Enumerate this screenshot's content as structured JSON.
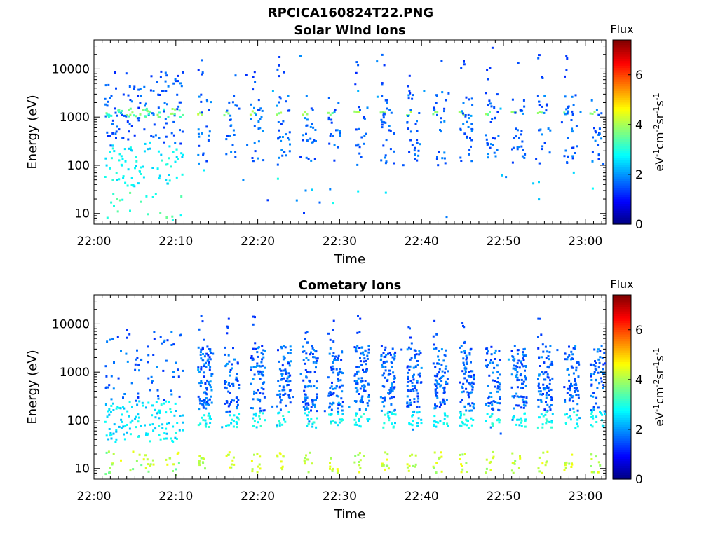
{
  "figure": {
    "title": "RPCICA160824T22.PNG"
  },
  "colorbar": {
    "label": "Flux",
    "unit_main": "eV",
    "unit_parts": [
      {
        "t": "eV",
        "sup": false
      },
      {
        "t": "-1",
        "sup": true
      },
      {
        "t": "cm",
        "sup": false
      },
      {
        "t": "-2",
        "sup": true
      },
      {
        "t": "sr",
        "sup": false
      },
      {
        "t": "-1",
        "sup": true
      },
      {
        "t": "s",
        "sup": false
      },
      {
        "t": "-1",
        "sup": true
      }
    ],
    "range": [
      0,
      7.4
    ],
    "ticks": [
      "0",
      "2",
      "4",
      "6"
    ],
    "colormap": "jet",
    "colors": [
      "#00007f",
      "#0000ff",
      "#007fff",
      "#00ffff",
      "#7fff7f",
      "#ffff00",
      "#ff7f00",
      "#ff0000",
      "#7f0000"
    ]
  },
  "chart_data": [
    {
      "type": "heatmap",
      "title": "Solar Wind Ions",
      "xlabel": "Time",
      "ylabel": "Energy (eV)",
      "yscale": "log",
      "ylim": [
        6,
        40000
      ],
      "xlim_minutes": [
        0,
        62.5
      ],
      "xtick_labels": [
        "22:00",
        "22:10",
        "22:20",
        "22:30",
        "22:40",
        "22:50",
        "23:00"
      ],
      "ytick_labels": [
        "10",
        "100",
        "1000",
        "10000"
      ],
      "bursts_start_min": [
        12.6,
        15.8,
        19.0,
        22.2,
        25.4,
        28.5,
        31.7,
        34.9,
        38.1,
        41.3,
        44.5,
        47.7,
        50.9,
        54.1,
        57.3,
        60.5
      ],
      "band_energy_eV": 1200,
      "band_flux": 3.4,
      "peak_flux": 4.2
    },
    {
      "type": "heatmap",
      "title": "Cometary Ions",
      "xlabel": "Time",
      "ylabel": "Energy (eV)",
      "yscale": "log",
      "ylim": [
        6,
        40000
      ],
      "xlim_minutes": [
        0,
        62.5
      ],
      "xtick_labels": [
        "22:00",
        "22:10",
        "22:20",
        "22:30",
        "22:40",
        "22:50",
        "23:00"
      ],
      "ytick_labels": [
        "10",
        "100",
        "1000",
        "10000"
      ],
      "bursts_start_min": [
        12.6,
        15.8,
        19.0,
        22.2,
        25.4,
        28.5,
        31.7,
        34.9,
        38.1,
        41.3,
        44.5,
        47.7,
        50.9,
        54.1,
        57.3,
        60.5
      ],
      "low_energy_band_eV": [
        8,
        22
      ],
      "low_energy_flux": 3.8,
      "peak_flux": 4.6
    }
  ]
}
